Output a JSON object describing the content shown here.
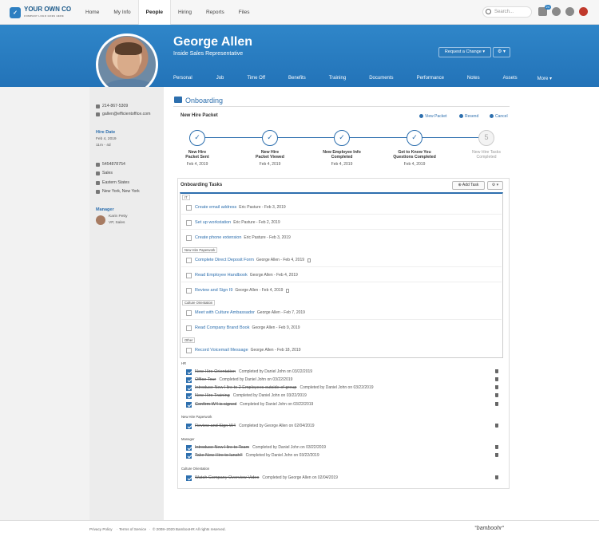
{
  "brand": {
    "name": "YOUR OWN CO",
    "tagline": "COMPANY LOGO GOES HERE"
  },
  "nav": {
    "items": [
      "Home",
      "My Info",
      "People",
      "Hiring",
      "Reports",
      "Files"
    ],
    "active": "People"
  },
  "search": {
    "placeholder": "Search..."
  },
  "inbox_count": "24",
  "employee": {
    "name": "George Allen",
    "title": "Inside Sales Representative"
  },
  "actions": {
    "request_change": "Request a Change ▾",
    "gear": "⚙ ▾"
  },
  "tabs": [
    "Personal",
    "Job",
    "Time Off",
    "Benefits",
    "Training",
    "Documents",
    "Performance",
    "Notes",
    "Assets",
    "More ▾"
  ],
  "sidebar": {
    "phone": "214-867-5309",
    "email": "gallen@efficientoffice.com",
    "hire_date_label": "Hire Date",
    "hire_date": "Feb 4, 2019",
    "tenure": "11m - 4d",
    "employee_id": "5454878754",
    "department": "Sales",
    "division": "Eastern States",
    "location": "New York, New York",
    "manager_label": "Manager",
    "manager_name": "Karin Petty",
    "manager_title": "VP, Sales"
  },
  "section": {
    "title": "Onboarding"
  },
  "packet": {
    "title": "New Hire Packet",
    "view": "View Packet",
    "resend": "Resend",
    "cancel": "Cancel"
  },
  "steps": [
    {
      "label1": "New Hire",
      "label2": "Packet Sent",
      "date": "Feb 4, 2019",
      "done": true
    },
    {
      "label1": "New Hire",
      "label2": "Packet Viewed",
      "date": "Feb 4, 2019",
      "done": true
    },
    {
      "label1": "New Employee Info",
      "label2": "Completed",
      "date": "Feb 4, 2019",
      "done": true
    },
    {
      "label1": "Get to Know You",
      "label2": "Questions Completed",
      "date": "Feb 4, 2019",
      "done": true
    },
    {
      "label1": "New Hire Tasks",
      "label2": "Completed",
      "date": "",
      "done": false,
      "number": "5"
    }
  ],
  "tasks": {
    "title": "Onboarding Tasks",
    "add_task": "Add Task",
    "gear": "⚙ ▾",
    "categories": {
      "it": "IT",
      "paperwork": "New Hire Paperwork",
      "culture": "Culture Orientation",
      "other": "Other"
    },
    "pending": [
      {
        "name": "Create email address",
        "meta": "Eric Pasture - Feb 3, 2019"
      },
      {
        "name": "Set up workstation",
        "meta": "Eric Pasture - Feb 2, 2019"
      },
      {
        "name": "Create phone extension",
        "meta": "Eric Pasture - Feb 3, 2019"
      },
      {
        "name": "Complete Direct Deposit Form",
        "meta": "George Allen - Feb 4, 2019"
      },
      {
        "name": "Read Employee Handbook",
        "meta": "George Allen - Feb 4, 2019"
      },
      {
        "name": "Review and Sign I9",
        "meta": "George Allen - Feb 4, 2019"
      },
      {
        "name": "Meet with Culture Ambassador",
        "meta": "George Allen - Feb 7, 2019"
      },
      {
        "name": "Read Company Brand Book",
        "meta": "George Allen - Feb 9, 2019"
      },
      {
        "name": "Record Voicemail Message",
        "meta": "George Allen - Feb 18, 2019"
      }
    ],
    "completed_groups": {
      "hr": "HR",
      "paperwork": "New Hire Paperwork",
      "manager": "Manager",
      "culture": "Culture Orientation"
    },
    "completed": [
      {
        "name": "New Hire Orientation",
        "meta": "Completed by Daniel John on 03/22/2019"
      },
      {
        "name": "Office Tour",
        "meta": "Completed by Daniel John on 03/22/2019"
      },
      {
        "name": "Introduce New Hire to 2 Employees outside of group",
        "meta": "Completed by Daniel John on 03/22/2019"
      },
      {
        "name": "New Hire Training",
        "meta": "Completed by Daniel John on 03/22/2019"
      },
      {
        "name": "Confirm W4 is signed",
        "meta": "Completed by Daniel John on 03/22/2019"
      },
      {
        "name": "Review and Sign W4",
        "meta": "Completed by George Allen on 02/04/2019"
      },
      {
        "name": "Introduce New Hire to Team",
        "meta": "Completed by Daniel John on 03/22/2019"
      },
      {
        "name": "Take New Hire to lunch!!",
        "meta": "Completed by Daniel John on 03/22/2019"
      },
      {
        "name": "Watch Company Overview Video",
        "meta": "Completed by George Allen on 02/04/2019"
      }
    ]
  },
  "footer": {
    "privacy": "Privacy Policy",
    "terms": "Terms of Service",
    "copyright": "© 2008–2020 BambooHR All rights reserved.",
    "logo": "°bamboohr°"
  }
}
